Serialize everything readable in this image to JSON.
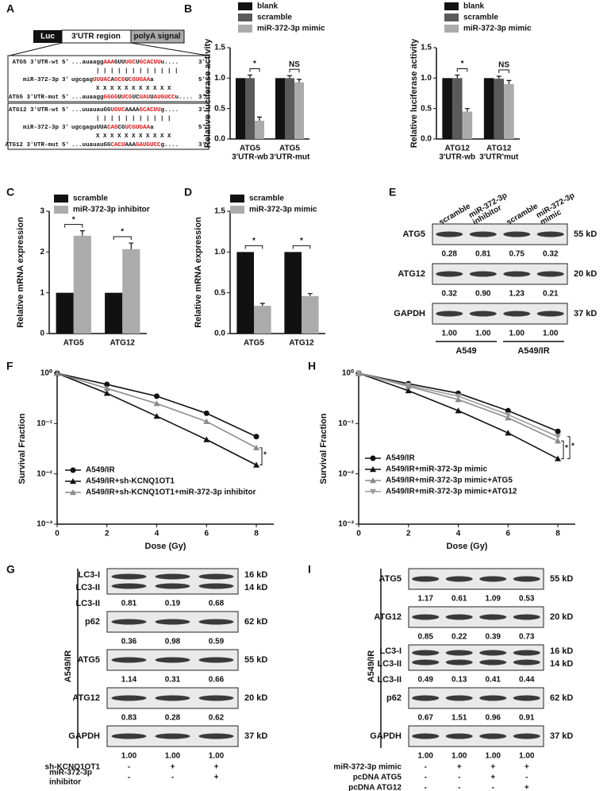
{
  "panel_labels": [
    "A",
    "B",
    "C",
    "D",
    "E",
    "F",
    "H",
    "G",
    "I"
  ],
  "panel_a": {
    "construct": [
      "Luc",
      "3'UTR region",
      "polyA  signal"
    ],
    "blocks": [
      {
        "rows": [
          {
            "name": "ATG5 3'UTR-wt",
            "ends": [
              "5'",
              "3'"
            ],
            "seq": [
              "...auaagg",
              "AAA",
              "GUU",
              "UGC",
              "U",
              "GCACUU",
              "u...."
            ]
          },
          {
            "name": "miR-372-3p",
            "ends": [
              "3'",
              "5'"
            ],
            "seq": [
              "ugcgag",
              "UUUAC",
              "A",
              "GCG",
              "U",
              "CGUGAA",
              "a"
            ]
          },
          {
            "name": "ATG5 3'UTR-mut",
            "ends": [
              "5'",
              "3'"
            ],
            "seq": [
              "...auaagg",
              "GGGG",
              "U",
              "UCG",
              "UC",
              "UAU",
              "U",
              "AUGUCC",
              "u...."
            ]
          }
        ],
        "matches": [
          "| | |     | |   | | | | | | |",
          "X X X    X   X   X X X X X X"
        ]
      },
      {
        "rows": [
          {
            "name": "ATG12 3'UTR-wt",
            "ends": [
              "5'",
              "3'"
            ],
            "seq": [
              "...uuauauGG",
              "UGUC",
              "AAAA",
              "GCACUU",
              "g...."
            ]
          },
          {
            "name": "miR-372-3p",
            "ends": [
              "3'",
              "5'"
            ],
            "seq": [
              "ugcgaguUUA",
              "CAG",
              "CG",
              "UCGUGAA",
              "a"
            ]
          },
          {
            "name": "ATG12 3'UTR-mut",
            "ends": [
              "5'",
              "3'"
            ],
            "seq": [
              "...uuauauGG",
              "CACU",
              "AAA",
              "GAUGUCC",
              "g...."
            ]
          }
        ],
        "matches": [
          "| | | |       | | | | | | |",
          "X X X X       X X X X X X X"
        ]
      }
    ]
  },
  "chart_data": [
    {
      "type": "bar",
      "ylabel": "Relative luciferase activity",
      "categories": [
        [
          "ATG5",
          "3'UTR-wb"
        ],
        [
          "ATG5",
          "3‘UTR-mut"
        ]
      ],
      "series": [
        {
          "name": "blank",
          "color": "#111111",
          "values": [
            1,
            1
          ]
        },
        {
          "name": "scramble",
          "color": "#5a5a5a",
          "values": [
            1,
            1
          ],
          "errors": [
            0.05,
            0.04
          ]
        },
        {
          "name": "miR-372-3p mimic",
          "color": "#ababab",
          "values": [
            0.3,
            0.93
          ],
          "errors": [
            0.06,
            0.05
          ]
        }
      ],
      "ylim": [
        0,
        1.5
      ],
      "yticks": [
        {
          "value": 0,
          "label": "0.0"
        },
        {
          "value": 0.5,
          "label": "0.5"
        },
        {
          "value": 1,
          "label": "1.0"
        },
        {
          "value": 1.5,
          "label": "1.5"
        }
      ],
      "annotations": [
        "*",
        "NS"
      ]
    },
    {
      "type": "bar",
      "ylabel": "Relative luciferase activity",
      "categories": [
        [
          "ATG12",
          "3'UTR-wb"
        ],
        [
          "ATG12",
          "3'UTR'mut"
        ]
      ],
      "series": [
        {
          "name": "blank",
          "color": "#111111",
          "values": [
            1,
            1
          ]
        },
        {
          "name": "scramble",
          "color": "#5a5a5a",
          "values": [
            1,
            0.99
          ],
          "errors": [
            0.05,
            0.04
          ]
        },
        {
          "name": "miR-372-3p mimic",
          "color": "#ababab",
          "values": [
            0.45,
            0.9
          ],
          "errors": [
            0.05,
            0.06
          ]
        }
      ],
      "ylim": [
        0,
        1.5
      ],
      "yticks": [
        {
          "value": 0,
          "label": "0.0"
        },
        {
          "value": 0.5,
          "label": "0.5"
        },
        {
          "value": 1,
          "label": "1.0"
        },
        {
          "value": 1.5,
          "label": "1.5"
        }
      ],
      "annotations": [
        "*",
        "NS"
      ]
    },
    {
      "type": "bar",
      "ylabel": "Relative mRNA expression",
      "categories": [
        "ATG5",
        "ATG12"
      ],
      "series": [
        {
          "name": "scramble",
          "color": "#111111",
          "values": [
            1,
            1
          ]
        },
        {
          "name": "miR-372-3p inhibitor",
          "color": "#ababab",
          "values": [
            2.4,
            2.07
          ],
          "errors": [
            0.12,
            0.15
          ]
        }
      ],
      "ylim": [
        0,
        3
      ],
      "yticks": [
        0,
        1,
        2,
        3
      ],
      "annotations": [
        "*",
        "*"
      ]
    },
    {
      "type": "bar",
      "ylabel": "Relative mRNA expression",
      "categories": [
        "ATG5",
        "ATG12"
      ],
      "series": [
        {
          "name": "scramble",
          "color": "#111111",
          "values": [
            1,
            1
          ]
        },
        {
          "name": "miR-372-3p mimic",
          "color": "#ababab",
          "values": [
            0.34,
            0.46
          ],
          "errors": [
            0.03,
            0.03
          ]
        }
      ],
      "ylim": [
        0,
        1.5
      ],
      "yticks": [
        {
          "value": 0,
          "label": "0.0"
        },
        {
          "value": 0.5,
          "label": "0.5"
        },
        {
          "value": 1,
          "label": "1.0"
        },
        {
          "value": 1.5,
          "label": "1.5"
        }
      ],
      "annotations": [
        "*",
        "*"
      ]
    },
    {
      "type": "line",
      "log_y": true,
      "xlabel": "Dose (Gy)",
      "ylabel": "Survival Fraction",
      "x": [
        0,
        2,
        4,
        6,
        8
      ],
      "xlim": [
        0,
        8.7
      ],
      "xticks": [
        0,
        2,
        4,
        6,
        8
      ],
      "ylim": [
        0.001,
        1
      ],
      "yticks": [
        {
          "value": 0.001,
          "label": "10⁻³"
        },
        {
          "value": 0.01,
          "label": "10⁻²"
        },
        {
          "value": 0.1,
          "label": "10⁻¹"
        },
        {
          "value": 1,
          "label": "10⁰"
        }
      ],
      "series": [
        {
          "name": "A549/IR",
          "color": "#111111",
          "marker": "circle",
          "values": [
            1,
            0.6,
            0.35,
            0.16,
            0.055
          ]
        },
        {
          "name": "A549/IR+sh-KCNQ1OT1",
          "color": "#111111",
          "marker": "triangle",
          "values": [
            1,
            0.4,
            0.14,
            0.048,
            0.015
          ]
        },
        {
          "name": "A549/IR+sh-KCNQ1OT1+miR-372-3p inhibitor",
          "color": "#8a8a8a",
          "marker": "triangle",
          "values": [
            1,
            0.5,
            0.25,
            0.11,
            0.033
          ]
        }
      ],
      "annotations": [
        "*"
      ]
    },
    {
      "type": "line",
      "log_y": true,
      "xlabel": "Dose (Gy)",
      "ylabel": "Survival Fraction",
      "x": [
        0,
        2,
        4,
        6,
        8
      ],
      "xlim": [
        0,
        8.7
      ],
      "xticks": [
        0,
        2,
        4,
        6,
        8
      ],
      "ylim": [
        0.001,
        1
      ],
      "yticks": [
        {
          "value": 0.001,
          "label": "10⁻³"
        },
        {
          "value": 0.01,
          "label": "10⁻²"
        },
        {
          "value": 0.1,
          "label": "10⁻¹"
        },
        {
          "value": 1,
          "label": "10⁰"
        }
      ],
      "series": [
        {
          "name": "A549/IR",
          "color": "#111111",
          "marker": "circle",
          "values": [
            1,
            0.62,
            0.4,
            0.18,
            0.07
          ]
        },
        {
          "name": "A549/IR+miR-372-3p mimic",
          "color": "#111111",
          "marker": "triangle",
          "values": [
            1,
            0.45,
            0.18,
            0.065,
            0.02
          ]
        },
        {
          "name": "A549/IR+miR-372-3p mimic+ATG5",
          "color": "#8a8a8a",
          "marker": "triangle",
          "values": [
            1,
            0.55,
            0.3,
            0.13,
            0.045
          ]
        },
        {
          "name": "A549/IR+miR-372-3p mimic+ATG12",
          "color": "#9a9a9a",
          "marker": "triangle-down",
          "values": [
            1,
            0.58,
            0.35,
            0.15,
            0.055
          ]
        }
      ],
      "annotations": [
        "*",
        "*"
      ]
    }
  ],
  "panel_e": {
    "columns": [
      "scramble",
      [
        "miR-372-3p",
        "inhibitor"
      ],
      "scramble",
      [
        "miR-372-3p",
        "mimic"
      ]
    ],
    "rows": [
      {
        "label": "ATG5",
        "size": "55 kD",
        "quant": [
          "0.28",
          "0.81",
          "0.75",
          "0.32"
        ]
      },
      {
        "label": "ATG12",
        "size": "20 kD",
        "quant": [
          "0.32",
          "0.90",
          "1.23",
          "0.21"
        ]
      },
      {
        "label": "GAPDH",
        "size": "37 kD",
        "quant": [
          "1.00",
          "1.00",
          "1.00",
          "1.00"
        ]
      }
    ],
    "groups": [
      "A549",
      "A549/IR"
    ]
  },
  "panel_g": {
    "side_label": "A549/IR",
    "rows": [
      {
        "label": [
          "LC3-I",
          "LC3-II"
        ],
        "size": [
          "16 kD",
          "14 kD"
        ],
        "quant_label": "LC3-II",
        "quant": [
          "0.81",
          "0.19",
          "0.68"
        ]
      },
      {
        "label": "p62",
        "size": "62 kD",
        "quant": [
          "0.36",
          "0.98",
          "0.59"
        ]
      },
      {
        "label": "ATG5",
        "size": "55 kD",
        "quant": [
          "1.14",
          "0.31",
          "0.66"
        ]
      },
      {
        "label": "ATG12",
        "size": "20 kD",
        "quant": [
          "0.83",
          "0.28",
          "0.62"
        ]
      },
      {
        "label": "GAPDH",
        "size": "37 kD",
        "quant": [
          "1.00",
          "1.00",
          "1.00"
        ]
      }
    ],
    "conditions": [
      {
        "label": "sh-KCNQ1OT1",
        "signs": [
          "-",
          "+",
          "+"
        ]
      },
      {
        "label": [
          "miR-372-3p",
          "inhibitor"
        ],
        "signs": [
          "-",
          "-",
          "+"
        ]
      }
    ]
  },
  "panel_i": {
    "side_label": "A549/IR",
    "rows": [
      {
        "label": "ATG5",
        "size": "55 kD",
        "quant": [
          "1.17",
          "0.61",
          "1.09",
          "0.53"
        ]
      },
      {
        "label": "ATG12",
        "size": "20 kD",
        "quant": [
          "0.85",
          "0.22",
          "0.39",
          "0.73"
        ]
      },
      {
        "label": [
          "LC3-I",
          "LC3-II"
        ],
        "size": [
          "16 kD",
          "14 kD"
        ],
        "quant_label": "LC3-II",
        "quant": [
          "0.49",
          "0.13",
          "0.41",
          "0.44"
        ]
      },
      {
        "label": "p62",
        "size": "62 kD",
        "quant": [
          "0.67",
          "1.51",
          "0.96",
          "0.91"
        ]
      },
      {
        "label": "GAPDH",
        "size": "37 kD",
        "quant": [
          "1.00",
          "1.00",
          "1.00",
          "1.00"
        ]
      }
    ],
    "conditions": [
      {
        "label": "miR-372-3p mimic",
        "signs": [
          "-",
          "+",
          "+",
          "+"
        ]
      },
      {
        "label": "pcDNA ATG5",
        "signs": [
          "-",
          "-",
          "+",
          "-"
        ]
      },
      {
        "label": "pcDNA ATG12",
        "signs": [
          "-",
          "-",
          "-",
          "+"
        ]
      }
    ]
  }
}
